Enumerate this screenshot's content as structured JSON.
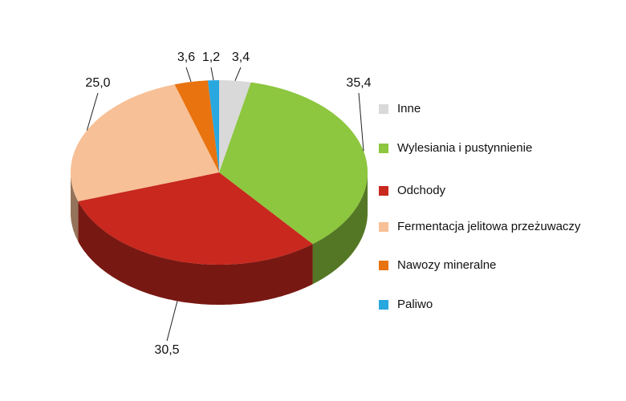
{
  "chart_data": {
    "type": "pie",
    "categories": [
      "Inne",
      "Wylesiania i pustynnienie",
      "Odchody",
      "Fermentacja jelitowa przeżuwaczy",
      "Nawozy mineralne",
      "Paliwo"
    ],
    "values": [
      3.4,
      35.4,
      30.5,
      25.0,
      3.6,
      1.2
    ],
    "value_labels": [
      "3,4",
      "35,4",
      "30,5",
      "25,0",
      "3,6",
      "1,2"
    ],
    "colors": [
      "#d9d9d9",
      "#8dc63f",
      "#c8281e",
      "#f7c096",
      "#e8730f",
      "#29a8e0"
    ]
  }
}
